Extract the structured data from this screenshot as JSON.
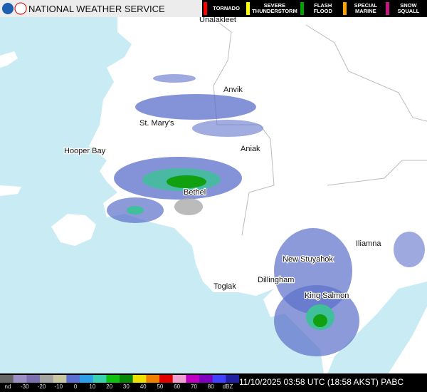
{
  "header": {
    "title": "NATIONAL WEATHER SERVICE",
    "warnings": [
      {
        "label": "TORNADO",
        "color": "#ff0000"
      },
      {
        "label": "SEVERE THUNDERSTORM",
        "color": "#ffff00"
      },
      {
        "label": "FLASH FLOOD",
        "color": "#00a000"
      },
      {
        "label": "SPECIAL MARINE",
        "color": "#ffa500"
      },
      {
        "label": "SNOW SQUALL",
        "color": "#c71585"
      }
    ]
  },
  "places": [
    "Unalakleet",
    "Anvik",
    "St. Mary's",
    "Aniak",
    "Hooper Bay",
    "Bethel",
    "Iliamna",
    "New Stuyahok",
    "Dillingham",
    "Togiak",
    "King Salmon"
  ],
  "scale": {
    "labels": [
      "nd",
      "-30",
      "-20",
      "-10",
      "0",
      "10",
      "20",
      "30",
      "40",
      "50",
      "60",
      "70",
      "80",
      "dBZ"
    ],
    "colors": [
      "#666666",
      "#9b8fc4",
      "#7b6fb0",
      "#a3a3a3",
      "#c8c8a0",
      "#5a6fd0",
      "#2e9ee8",
      "#38d0b0",
      "#10c010",
      "#088808",
      "#f0e000",
      "#f08000",
      "#e00000",
      "#f0a0d0",
      "#c000c0",
      "#8000c0",
      "#4040ff",
      "#2020a0"
    ]
  },
  "timestamp": "11/10/2025 03:58 UTC (18:58 AKST)",
  "station": "PABC"
}
